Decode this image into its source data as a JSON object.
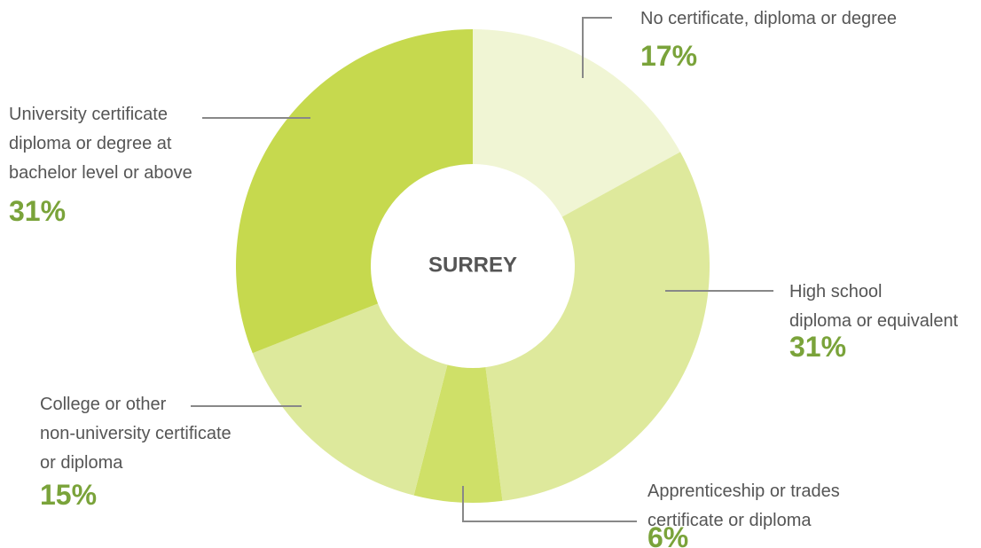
{
  "chart_data": {
    "type": "donut",
    "center_label": "SURREY",
    "categories": [
      "No certificate, diploma or degree",
      "High school\ndiploma or equivalent",
      "Apprenticeship or trades\ncertificate or diploma",
      "College or other\nnon-university certificate\nor diploma",
      "University certificate\ndiploma or degree at\nbachelor level or above"
    ],
    "values": [
      17,
      31,
      6,
      15,
      31
    ],
    "value_labels": [
      "17%",
      "31%",
      "6%",
      "15%",
      "31%"
    ],
    "colors": [
      "#f0f5d4",
      "#dee99c",
      "#cfe068",
      "#dde99c",
      "#c6d94e"
    ]
  }
}
